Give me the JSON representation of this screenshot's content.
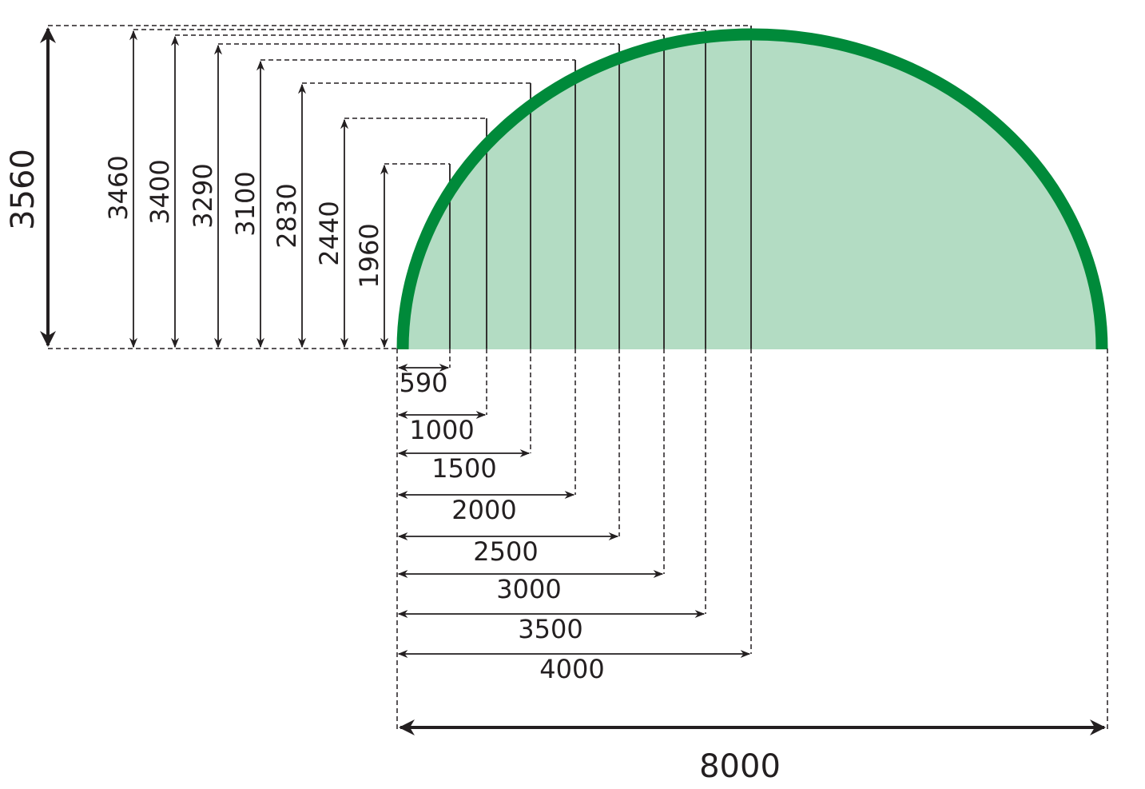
{
  "colors": {
    "arch_stroke": "#008a3a",
    "arch_fill": "#b3dcc3",
    "lines": "#231f20"
  },
  "total_height": "3560",
  "total_width": "8000",
  "measurements": [
    {
      "offset": "590",
      "height": "1960"
    },
    {
      "offset": "1000",
      "height": "2440"
    },
    {
      "offset": "1500",
      "height": "2830"
    },
    {
      "offset": "2000",
      "height": "3100"
    },
    {
      "offset": "2500",
      "height": "3290"
    },
    {
      "offset": "3000",
      "height": "3400"
    },
    {
      "offset": "3500",
      "height": "3460"
    },
    {
      "offset": "4000",
      "height": "3560"
    }
  ]
}
